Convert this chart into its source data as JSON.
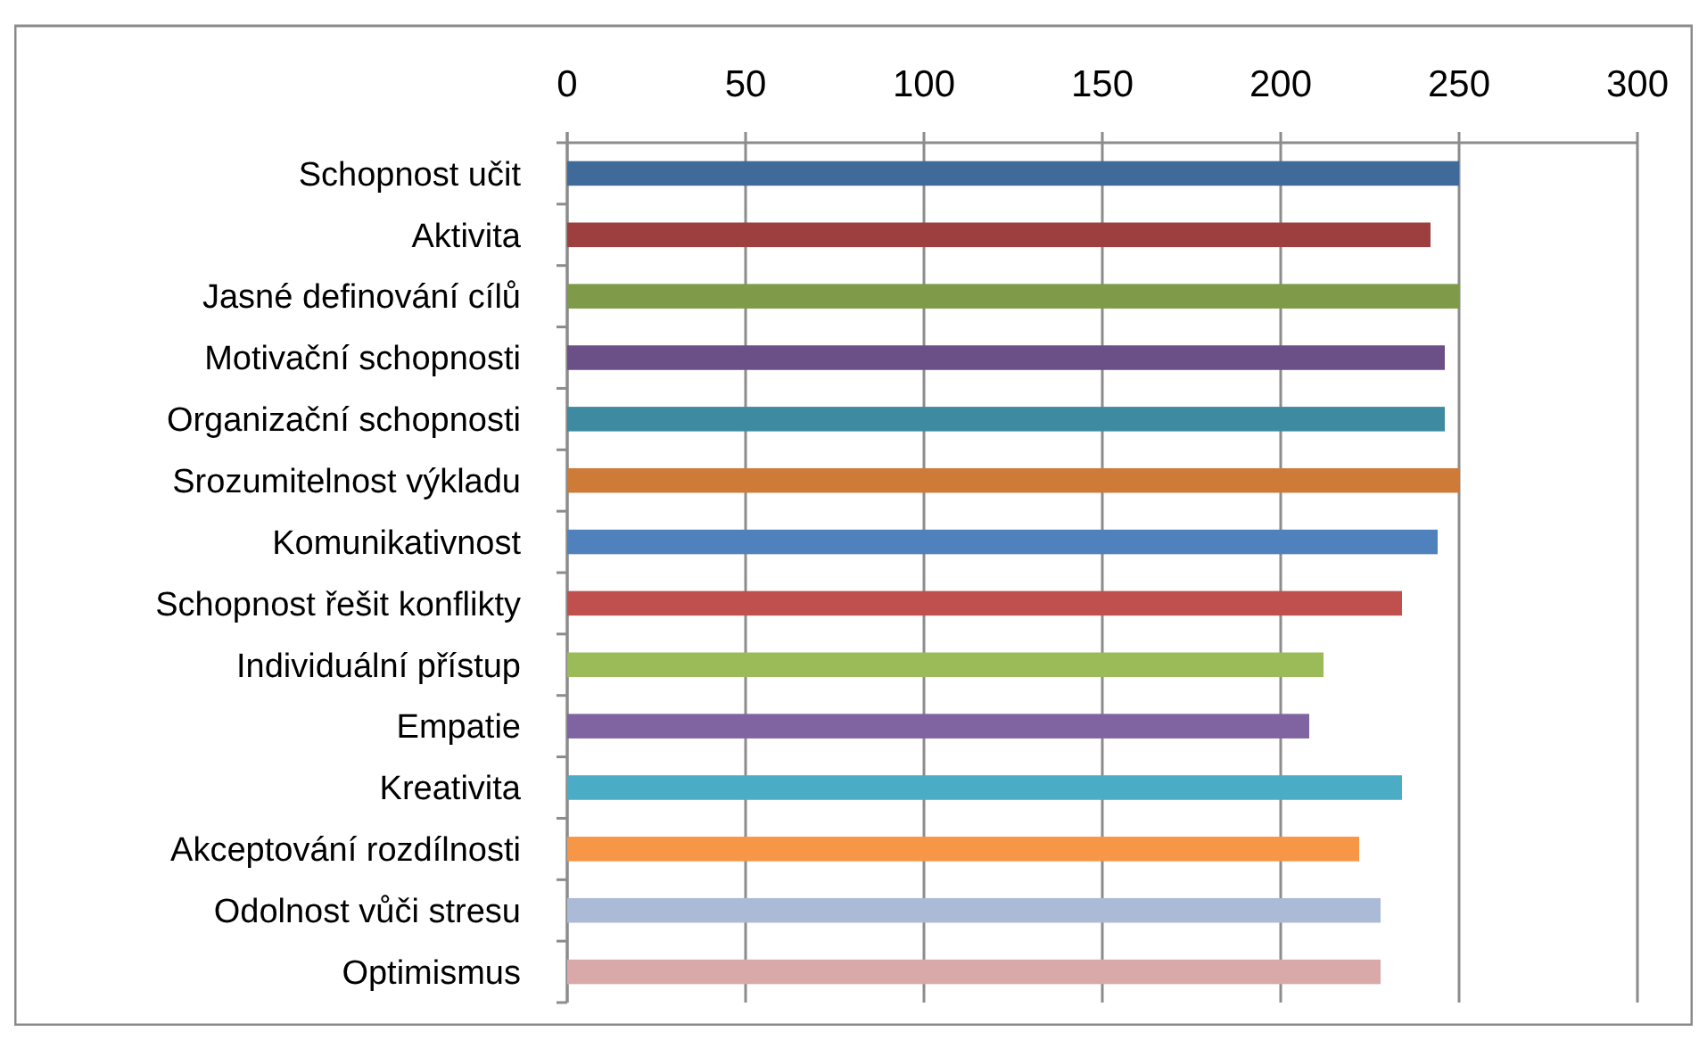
{
  "chart_data": {
    "type": "bar",
    "orientation": "horizontal",
    "categories": [
      "Schopnost učit",
      "Aktivita",
      "Jasné definování cílů",
      "Motivační schopnosti",
      "Organizační schopnosti",
      "Srozumitelnost výkladu",
      "Komunikativnost",
      "Schopnost řešit konflikty",
      "Individuální přístup",
      "Empatie",
      "Kreativita",
      "Akceptování rozdílnosti",
      "Odolnost vůči stresu",
      "Optimismus"
    ],
    "values": [
      250,
      242,
      250,
      246,
      246,
      250,
      244,
      234,
      212,
      208,
      234,
      222,
      228,
      228
    ],
    "colors": [
      "#3f6a9a",
      "#9e3f3f",
      "#7f9a48",
      "#6a5087",
      "#3e8ba1",
      "#cd7b37",
      "#4f81bd",
      "#c0504d",
      "#9bbb59",
      "#8064a2",
      "#4bacc6",
      "#f79646",
      "#aabad7",
      "#d9a9a9"
    ],
    "xlim": [
      0,
      300
    ],
    "xticks": [
      0,
      50,
      100,
      150,
      200,
      250,
      300
    ],
    "grid": "x"
  }
}
